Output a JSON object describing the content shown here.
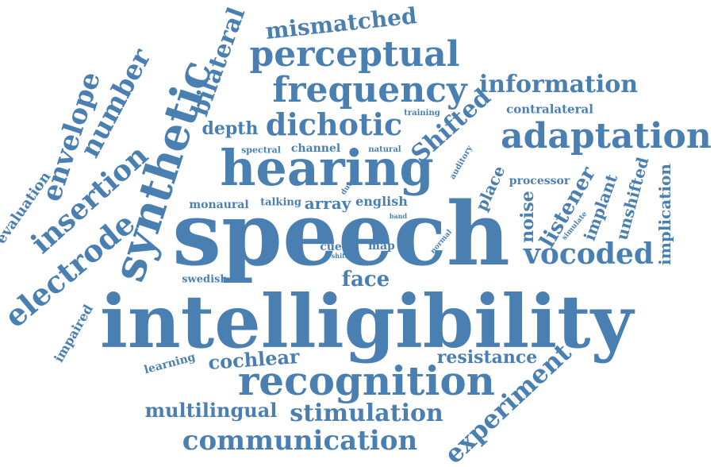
{
  "text_color": "#4a7fb1",
  "words": [
    "speech",
    "intelligibility",
    "hearing",
    "recognition",
    "synthetic",
    "perceptual",
    "frequency",
    "adaptation",
    "communication",
    "stimulation",
    "vocoded",
    "information",
    "dichotic",
    "electrode",
    "insertion",
    "envelope",
    "number",
    "bilateral",
    "mismatched",
    "experiment",
    "multilingual",
    "cochlear",
    "face",
    "resistance",
    "Shifted",
    "listener",
    "implant",
    "noise",
    "implication",
    "unshifted",
    "place",
    "array",
    "depth",
    "evaluation",
    "impaired",
    "learning",
    "swedish",
    "monaural",
    "talking",
    "english",
    "channel",
    "spectral",
    "natural",
    "cue",
    "map",
    "contralateral",
    "processor",
    "auditory",
    "training",
    "dutch",
    "band",
    "normal",
    "simulate",
    "shift"
  ]
}
